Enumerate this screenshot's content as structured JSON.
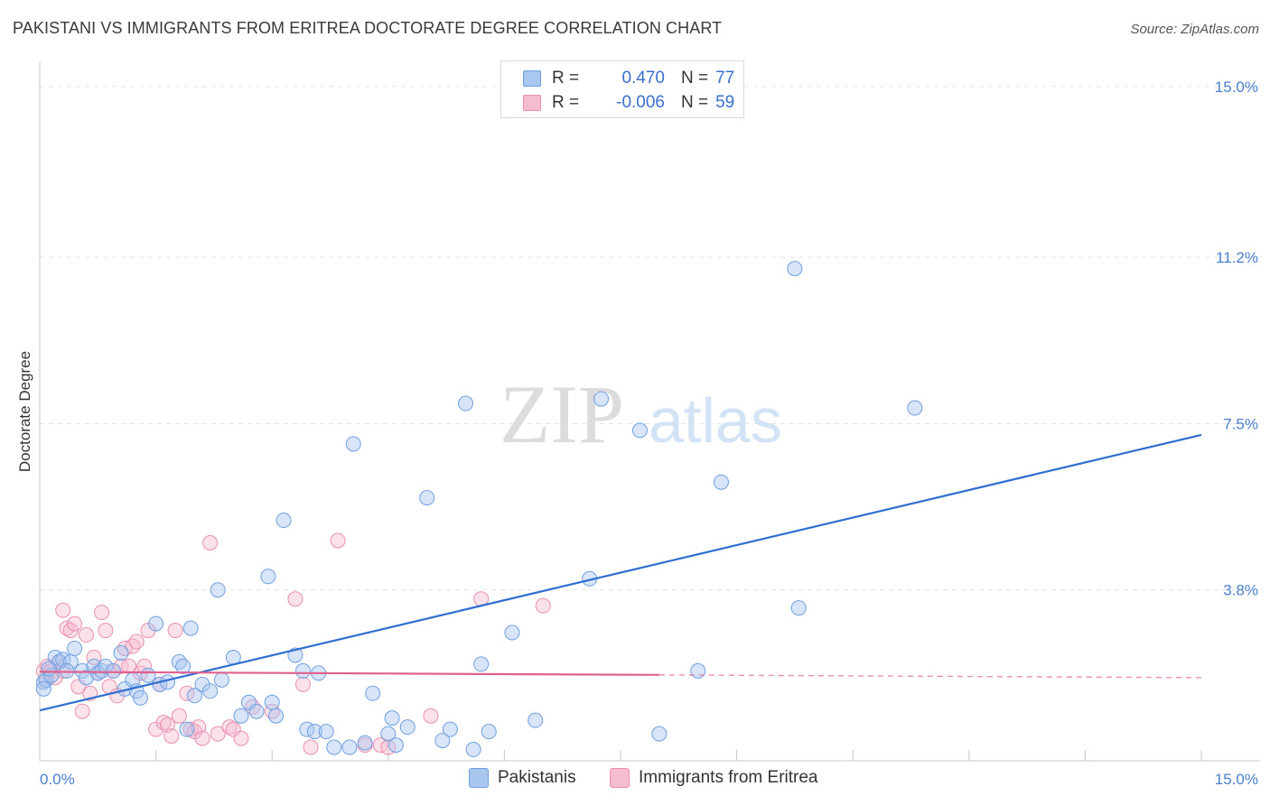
{
  "header": {
    "title": "PAKISTANI VS IMMIGRANTS FROM ERITREA DOCTORATE DEGREE CORRELATION CHART",
    "source": "Source: ZipAtlas.com"
  },
  "watermark": {
    "zip": "ZIP",
    "atlas": "atlas"
  },
  "legend": {
    "r_label": "R =",
    "n_label": "N =",
    "rows": [
      {
        "r": "0.470",
        "n": "77"
      },
      {
        "r": "-0.006",
        "n": "59"
      }
    ]
  },
  "bottom_legend": {
    "series1": "Pakistanis",
    "series2": "Immigrants from Eritrea"
  },
  "colors": {
    "blue_fill": "#a9c6ef",
    "blue_stroke": "#6f9fe0",
    "blue_line": "#2f6fd0",
    "pink_fill": "#f6bdd0",
    "pink_stroke": "#ea8fb0",
    "pink_line": "#e0608e",
    "grid": "#e4e4e4",
    "tick_text": "#4a7fcf"
  },
  "chart_data": {
    "type": "scatter",
    "title": "PAKISTANI VS IMMIGRANTS FROM ERITREA DOCTORATE DEGREE CORRELATION CHART",
    "xlabel": "",
    "ylabel": "Doctorate Degree",
    "xlim": [
      0,
      15
    ],
    "ylim": [
      0,
      15.5
    ],
    "x_tick_labels": [
      "0.0%",
      "15.0%"
    ],
    "y_ticks": [
      3.8,
      7.5,
      11.2,
      15.0
    ],
    "y_tick_labels": [
      "3.8%",
      "7.5%",
      "11.2%",
      "15.0%"
    ],
    "series": [
      {
        "name": "Pakistanis",
        "r": 0.47,
        "n": 77,
        "trend": {
          "x": [
            0,
            15
          ],
          "y": [
            1.12,
            7.25
          ],
          "dashed_from": null
        },
        "points": [
          [
            0.05,
            1.75
          ],
          [
            0.08,
            1.8
          ],
          [
            0.15,
            1.9
          ],
          [
            0.2,
            2.3
          ],
          [
            0.25,
            2.2
          ],
          [
            0.3,
            2.25
          ],
          [
            0.4,
            2.2
          ],
          [
            0.45,
            2.5
          ],
          [
            0.55,
            2.0
          ],
          [
            0.6,
            1.85
          ],
          [
            0.7,
            2.1
          ],
          [
            0.75,
            1.95
          ],
          [
            0.8,
            2.0
          ],
          [
            0.85,
            2.1
          ],
          [
            0.95,
            2.0
          ],
          [
            1.05,
            2.4
          ],
          [
            1.1,
            1.6
          ],
          [
            1.2,
            1.8
          ],
          [
            1.25,
            1.55
          ],
          [
            1.3,
            1.4
          ],
          [
            1.4,
            1.9
          ],
          [
            1.5,
            3.05
          ],
          [
            1.55,
            1.7
          ],
          [
            1.65,
            1.75
          ],
          [
            1.8,
            2.2
          ],
          [
            1.85,
            2.1
          ],
          [
            1.9,
            0.7
          ],
          [
            1.95,
            2.95
          ],
          [
            2.0,
            1.45
          ],
          [
            2.1,
            1.7
          ],
          [
            2.2,
            1.55
          ],
          [
            2.3,
            3.8
          ],
          [
            2.35,
            1.8
          ],
          [
            2.5,
            2.3
          ],
          [
            2.6,
            1.0
          ],
          [
            2.7,
            1.3
          ],
          [
            2.8,
            1.1
          ],
          [
            2.95,
            4.1
          ],
          [
            3.0,
            1.3
          ],
          [
            3.05,
            1.0
          ],
          [
            3.15,
            5.35
          ],
          [
            3.3,
            2.35
          ],
          [
            3.4,
            2.0
          ],
          [
            3.45,
            0.7
          ],
          [
            3.55,
            0.65
          ],
          [
            3.6,
            1.95
          ],
          [
            3.7,
            0.65
          ],
          [
            3.8,
            0.3
          ],
          [
            4.0,
            0.3
          ],
          [
            4.05,
            7.05
          ],
          [
            4.2,
            0.4
          ],
          [
            4.3,
            1.5
          ],
          [
            4.5,
            0.6
          ],
          [
            4.55,
            0.95
          ],
          [
            4.6,
            0.35
          ],
          [
            4.75,
            0.75
          ],
          [
            5.0,
            5.85
          ],
          [
            5.2,
            0.45
          ],
          [
            5.3,
            0.7
          ],
          [
            5.5,
            7.95
          ],
          [
            5.6,
            0.25
          ],
          [
            5.7,
            2.15
          ],
          [
            5.8,
            0.65
          ],
          [
            6.1,
            2.85
          ],
          [
            6.4,
            0.9
          ],
          [
            7.1,
            4.05
          ],
          [
            7.25,
            8.05
          ],
          [
            7.75,
            7.35
          ],
          [
            8.0,
            0.6
          ],
          [
            8.5,
            2.0
          ],
          [
            8.8,
            6.2
          ],
          [
            9.8,
            3.4
          ],
          [
            9.75,
            10.95
          ],
          [
            11.3,
            7.85
          ],
          [
            0.05,
            1.6
          ],
          [
            0.12,
            2.05
          ],
          [
            0.35,
            2.0
          ]
        ]
      },
      {
        "name": "Immigrants from Eritrea",
        "r": -0.006,
        "n": 59,
        "trend": {
          "x": [
            0,
            15
          ],
          "y": [
            1.98,
            1.85
          ],
          "solid_until": 8.0
        },
        "points": [
          [
            0.05,
            2.0
          ],
          [
            0.08,
            1.8
          ],
          [
            0.1,
            2.1
          ],
          [
            0.15,
            2.0
          ],
          [
            0.2,
            1.85
          ],
          [
            0.25,
            2.2
          ],
          [
            0.3,
            2.0
          ],
          [
            0.3,
            3.35
          ],
          [
            0.35,
            2.95
          ],
          [
            0.4,
            2.9
          ],
          [
            0.45,
            3.05
          ],
          [
            0.5,
            1.65
          ],
          [
            0.55,
            1.1
          ],
          [
            0.6,
            2.8
          ],
          [
            0.65,
            1.5
          ],
          [
            0.7,
            2.3
          ],
          [
            0.75,
            1.95
          ],
          [
            0.8,
            3.3
          ],
          [
            0.85,
            2.9
          ],
          [
            0.9,
            1.65
          ],
          [
            0.95,
            2.0
          ],
          [
            1.0,
            1.45
          ],
          [
            1.05,
            2.1
          ],
          [
            1.1,
            2.5
          ],
          [
            1.15,
            2.1
          ],
          [
            1.2,
            2.55
          ],
          [
            1.25,
            2.65
          ],
          [
            1.3,
            1.95
          ],
          [
            1.35,
            2.1
          ],
          [
            1.4,
            2.9
          ],
          [
            1.5,
            0.7
          ],
          [
            1.55,
            1.7
          ],
          [
            1.6,
            0.85
          ],
          [
            1.65,
            0.8
          ],
          [
            1.7,
            0.55
          ],
          [
            1.75,
            2.9
          ],
          [
            1.8,
            1.0
          ],
          [
            1.9,
            1.5
          ],
          [
            1.95,
            0.7
          ],
          [
            2.0,
            0.65
          ],
          [
            2.05,
            0.75
          ],
          [
            2.1,
            0.5
          ],
          [
            2.2,
            4.85
          ],
          [
            2.3,
            0.6
          ],
          [
            2.45,
            0.75
          ],
          [
            2.5,
            0.7
          ],
          [
            2.6,
            0.5
          ],
          [
            2.75,
            1.2
          ],
          [
            3.0,
            1.1
          ],
          [
            3.3,
            3.6
          ],
          [
            3.4,
            1.7
          ],
          [
            3.5,
            0.3
          ],
          [
            3.85,
            4.9
          ],
          [
            4.2,
            0.35
          ],
          [
            4.4,
            0.35
          ],
          [
            4.5,
            0.3
          ],
          [
            5.05,
            1.0
          ],
          [
            5.7,
            3.6
          ],
          [
            6.5,
            3.45
          ]
        ]
      }
    ]
  }
}
